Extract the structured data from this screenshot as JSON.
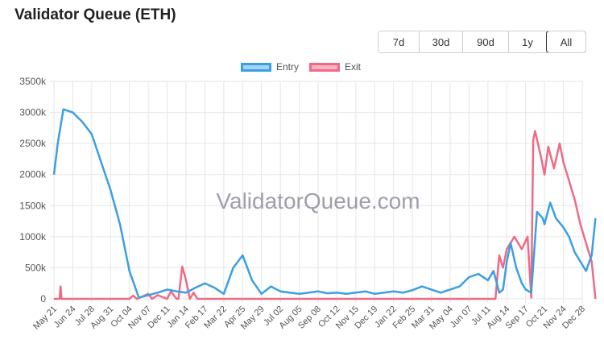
{
  "header": {
    "title": "Validator Queue (ETH)"
  },
  "range_buttons": [
    {
      "label": "7d",
      "active": false
    },
    {
      "label": "30d",
      "active": false
    },
    {
      "label": "90d",
      "active": false
    },
    {
      "label": "1y",
      "active": false
    },
    {
      "label": "All",
      "active": true
    }
  ],
  "watermark": "ValidatorQueue.com",
  "colors": {
    "entry_line": "#3b9fe3",
    "entry_fill": "#a6d3f5",
    "exit_line": "#f06a86",
    "exit_fill": "#f9b3c2",
    "grid": "#e6e6e6"
  },
  "chart_data": {
    "type": "line",
    "title": "Validator Queue (ETH)",
    "xlabel": "",
    "ylabel": "",
    "ylim": [
      0,
      3500000
    ],
    "y_ticks": [
      "0",
      "500k",
      "1000k",
      "1500k",
      "2000k",
      "2500k",
      "3000k",
      "3500k"
    ],
    "categories": [
      "May 21",
      "Jun 24",
      "Jul 28",
      "Aug 31",
      "Oct 04",
      "Nov 07",
      "Dec 11",
      "Jan 14",
      "Feb 17",
      "Mar 22",
      "Apr 25",
      "May 29",
      "Jul 02",
      "Aug 05",
      "Sep 08",
      "Oct 12",
      "Nov 15",
      "Dec 19",
      "Jan 22",
      "Feb 25",
      "Mar 31",
      "May 04",
      "Jun 07",
      "Jul 11",
      "Aug 14",
      "Sep 17",
      "Oct 21",
      "Nov 24",
      "Dec 28"
    ],
    "legend": {
      "position": "top-center"
    },
    "grid": true,
    "series": [
      {
        "name": "Entry",
        "x": [
          0,
          0.2,
          0.5,
          1,
          1.5,
          2,
          2.5,
          3,
          3.5,
          4,
          4.5,
          5,
          5.5,
          6,
          6.5,
          7,
          7.5,
          8,
          8.5,
          9,
          9.5,
          10,
          10.5,
          11,
          11.5,
          12,
          12.5,
          13,
          13.5,
          14,
          14.5,
          15,
          15.5,
          16,
          16.5,
          17,
          17.5,
          18,
          18.5,
          19,
          19.5,
          20,
          20.5,
          21,
          21.5,
          22,
          22.5,
          23,
          23.3,
          23.6,
          23.8,
          24,
          24.2,
          24.5,
          24.8,
          25,
          25.3,
          25.6,
          25.9,
          26,
          26.3,
          26.6,
          27,
          27.3,
          27.6,
          28,
          28.2,
          28.5,
          28.7
        ],
        "values": [
          2000000,
          2500000,
          3050000,
          3000000,
          2850000,
          2650000,
          2200000,
          1750000,
          1200000,
          450000,
          20000,
          60000,
          100000,
          150000,
          120000,
          100000,
          180000,
          250000,
          180000,
          80000,
          500000,
          700000,
          300000,
          80000,
          200000,
          120000,
          100000,
          80000,
          100000,
          120000,
          90000,
          100000,
          80000,
          100000,
          120000,
          80000,
          100000,
          120000,
          100000,
          140000,
          200000,
          150000,
          100000,
          150000,
          200000,
          350000,
          400000,
          300000,
          450000,
          100000,
          150000,
          600000,
          900000,
          500000,
          250000,
          150000,
          100000,
          1400000,
          1300000,
          1200000,
          1550000,
          1300000,
          1150000,
          1000000,
          750000,
          550000,
          450000,
          700000,
          1300000
        ]
      },
      {
        "name": "Exit",
        "x": [
          0,
          0.3,
          0.35,
          0.4,
          0.45,
          0.5,
          1,
          2,
          3,
          4,
          4.2,
          4.4,
          5,
          5.2,
          5.5,
          6,
          6.2,
          6.5,
          6.6,
          6.8,
          7,
          7.2,
          7.4,
          7.6,
          8,
          9,
          10,
          11,
          12,
          13,
          14,
          15,
          16,
          17,
          18,
          19,
          20,
          21,
          22,
          23,
          23.4,
          23.6,
          23.8,
          24,
          24.4,
          24.8,
          25.1,
          25.3,
          25.4,
          25.5,
          25.8,
          26,
          26.2,
          26.5,
          26.8,
          27,
          27.3,
          27.6,
          27.9,
          28.2,
          28.5,
          28.7
        ],
        "values": [
          0,
          0,
          200000,
          0,
          0,
          0,
          0,
          0,
          0,
          0,
          50000,
          0,
          80000,
          0,
          60000,
          0,
          120000,
          0,
          0,
          520000,
          300000,
          0,
          100000,
          0,
          0,
          0,
          0,
          0,
          0,
          0,
          0,
          0,
          0,
          0,
          0,
          0,
          0,
          0,
          0,
          0,
          0,
          700000,
          500000,
          800000,
          1000000,
          800000,
          1000000,
          20000,
          2550000,
          2700000,
          2300000,
          2000000,
          2450000,
          2100000,
          2500000,
          2200000,
          1900000,
          1600000,
          1200000,
          900000,
          600000,
          0
        ]
      }
    ]
  }
}
